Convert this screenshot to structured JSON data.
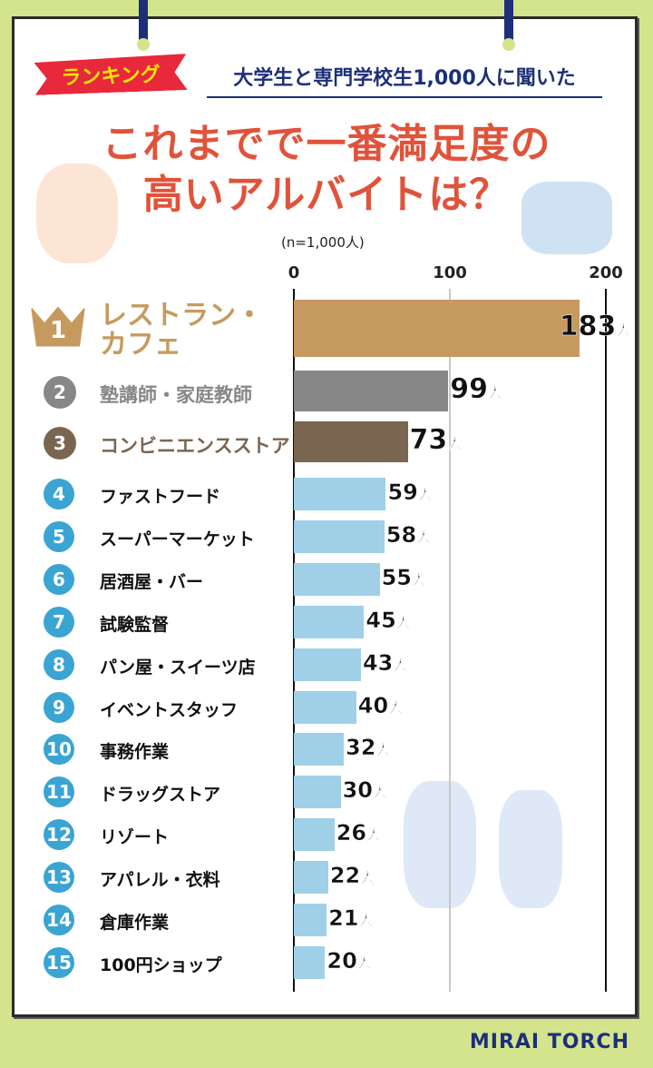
{
  "header": {
    "ribbon": "ランキング",
    "subtitle": "大学生と専門学校生1,000人に聞いた",
    "title_line1": "これまでで一番満足度の",
    "title_line2": "高いアルバイトは？",
    "sample": "(n=1,000人)"
  },
  "chart_data": {
    "type": "bar",
    "orientation": "horizontal",
    "title": "これまでで一番満足度の高いアルバイトは？",
    "xlim": [
      0,
      200
    ],
    "xticks": [
      "0",
      "100",
      "200"
    ],
    "unit": "人",
    "categories": [
      "レストラン・カフェ",
      "塾講師・家庭教師",
      "コンビニエンスストア",
      "ファストフード",
      "スーパーマーケット",
      "居酒屋・バー",
      "試験監督",
      "パン屋・スイーツ店",
      "イベントスタッフ",
      "事務作業",
      "ドラッグストア",
      "リゾート",
      "アパレル・衣料",
      "倉庫作業",
      "100円ショップ"
    ],
    "ranks": [
      "1",
      "2",
      "3",
      "4",
      "5",
      "6",
      "7",
      "8",
      "9",
      "10",
      "11",
      "12",
      "13",
      "14",
      "15"
    ],
    "values": [
      183,
      99,
      73,
      59,
      58,
      55,
      45,
      43,
      40,
      32,
      30,
      26,
      22,
      21,
      20
    ],
    "colors": {
      "rank1": "#c69a5e",
      "rank2": "#878787",
      "rank3": "#7a6650",
      "other": "#9fd0e8",
      "badge": "#3aa4d3"
    }
  },
  "footer": {
    "logo": "MIRAI TORCH"
  }
}
